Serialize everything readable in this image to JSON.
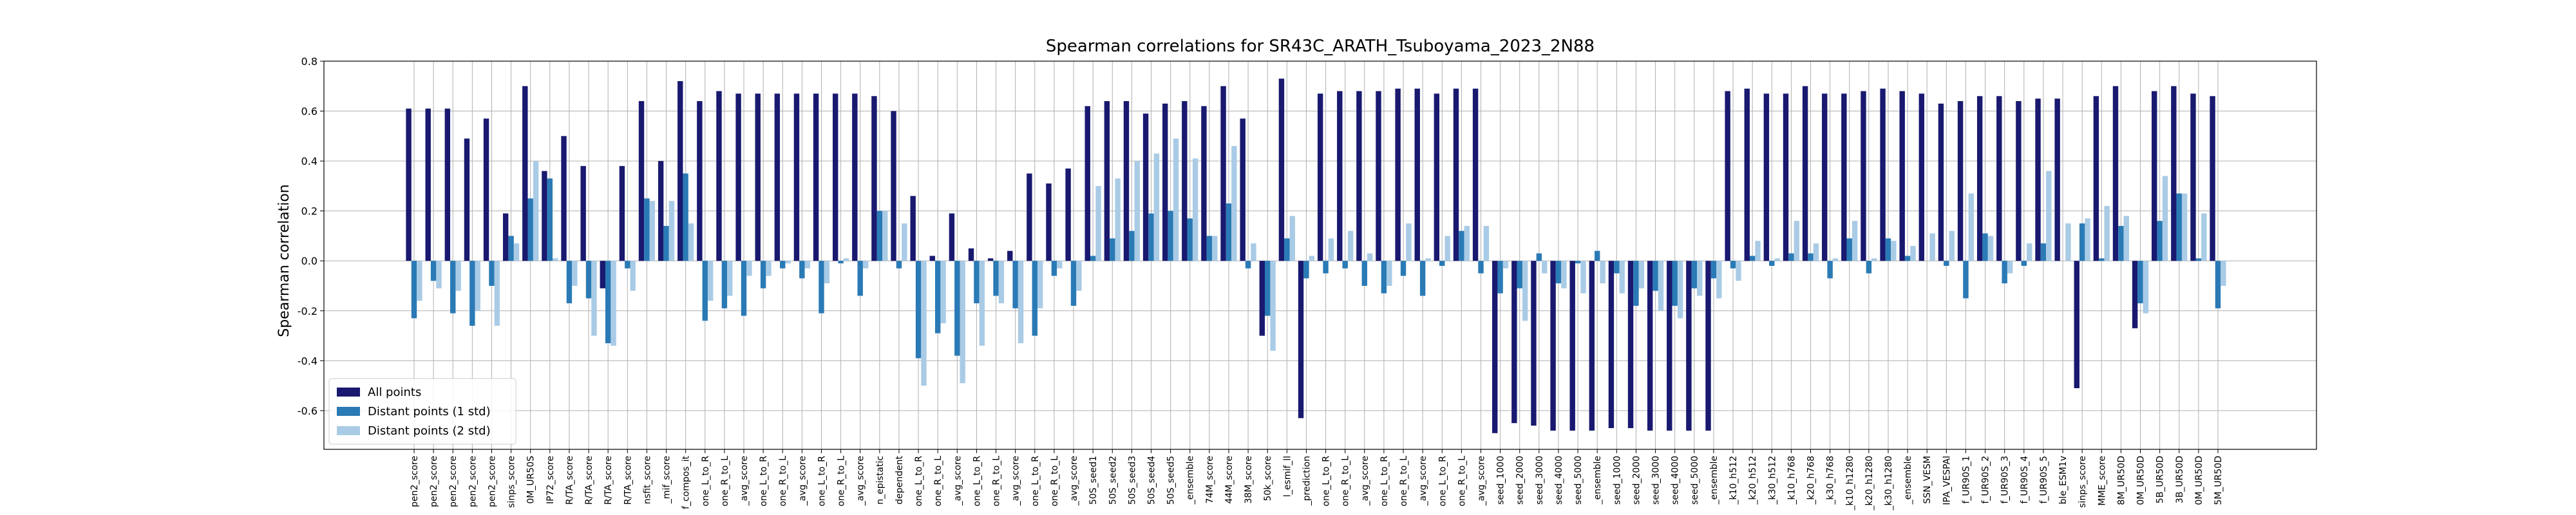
{
  "chart_data": {
    "type": "bar",
    "title": "Spearman correlations for SR43C_ARATH_Tsuboyama_2023_2N88",
    "y_label": "Spearman correlation",
    "categories": [
      "pen2_score",
      "pen2_score",
      "pen2_score",
      "pen2_score",
      "pen2_score",
      "sinps_score",
      "0M_UR50S",
      "IP72_score",
      "R/TA_score",
      "R/TA_score",
      "R/TA_score",
      "R/TA_score",
      "nsfit_score",
      "_mif_score",
      "f_compos_it",
      "one_L_to_R",
      "one_R_to_L",
      "_avg_score",
      "one_L_to_R",
      "one_R_to_L",
      "_avg_score",
      "one_L_to_R",
      "one_R_to_L",
      "_avg_score",
      "n_epistatic",
      "dependent",
      "one_L_to_R",
      "one_R_to_L",
      "_avg_score",
      "one_L_to_R",
      "one_R_to_L",
      "_avg_score",
      "one_L_to_R",
      "one_R_to_L",
      "_avg_score",
      "50S_seed1",
      "50S_seed2",
      "50S_seed3",
      "50S_seed4",
      "50S_seed5",
      "_ensemble",
      "74M_score",
      "44M_score",
      "38M_score",
      "50k_score",
      "l_esmif_ll",
      "_prediction",
      "one_L_to_R",
      "one_R_to_L",
      "_avg_score",
      "one_L_to_R",
      "one_R_to_L",
      "_avg_score",
      "one_L_to_R",
      "one_R_to_L",
      "_avg_score",
      "seed_1000",
      "seed_2000",
      "seed_3000",
      "seed_4000",
      "seed_5000",
      "_ensemble",
      "seed_1000",
      "seed_2000",
      "seed_3000",
      "seed_4000",
      "seed_5000",
      "_ensemble",
      "_k10_h512",
      "_k20_h512",
      "_k30_h512",
      "_k10_h768",
      "_k20_h768",
      "_k30_h768",
      "_k10_h1280",
      "_k20_h1280",
      "_k30_h1280",
      "_ensemble",
      "SSN_VESM",
      "IPA_VESPAl",
      "f_UR90S_1",
      "f_UR90S_2",
      "f_UR90S_3",
      "f_UR90S_4",
      "f_UR90S_5",
      "ble_ESM1v",
      "sinps_score",
      "MME_score",
      "8M_UR50D",
      "0M_UR50D",
      "5B_UR50D",
      "3B_UR50D",
      "0M_UR50D",
      "5M_UR50D"
    ],
    "series": [
      {
        "name": "All points",
        "color": "#191970",
        "values": [
          0.61,
          0.61,
          0.61,
          0.49,
          0.57,
          0.19,
          0.7,
          0.36,
          0.5,
          0.38,
          -0.11,
          0.38,
          0.64,
          0.4,
          0.72,
          0.64,
          0.68,
          0.67,
          0.67,
          0.67,
          0.67,
          0.67,
          0.67,
          0.67,
          0.66,
          0.6,
          0.26,
          0.02,
          0.19,
          0.05,
          0.01,
          0.04,
          0.35,
          0.31,
          0.37,
          0.62,
          0.64,
          0.64,
          0.59,
          0.63,
          0.64,
          0.62,
          0.7,
          0.57,
          -0.3,
          0.73,
          -0.63,
          0.67,
          0.68,
          0.68,
          0.68,
          0.69,
          0.69,
          0.67,
          0.69,
          0.69,
          -0.69,
          -0.65,
          -0.66,
          -0.68,
          -0.68,
          -0.68,
          -0.67,
          -0.67,
          -0.68,
          -0.68,
          -0.68,
          -0.68,
          0.68,
          0.69,
          0.67,
          0.67,
          0.7,
          0.67,
          0.67,
          0.68,
          0.69,
          0.68,
          0.67,
          0.63,
          0.64,
          0.66,
          0.66,
          0.64,
          0.65,
          0.65,
          -0.51,
          0.66,
          0.7,
          -0.27,
          0.68,
          0.7,
          0.67,
          0.66
        ]
      },
      {
        "name": "Distant points (1 std)",
        "color": "#2a7ab5",
        "values": [
          -0.23,
          -0.08,
          -0.21,
          -0.26,
          -0.1,
          0.1,
          0.25,
          0.33,
          -0.17,
          -0.15,
          -0.33,
          -0.03,
          0.25,
          0.14,
          0.35,
          -0.24,
          -0.19,
          -0.22,
          -0.11,
          -0.03,
          -0.07,
          -0.21,
          -0.01,
          -0.14,
          0.2,
          -0.03,
          -0.39,
          -0.29,
          -0.38,
          -0.17,
          -0.14,
          -0.19,
          -0.3,
          -0.06,
          -0.18,
          0.02,
          0.09,
          0.12,
          0.19,
          0.2,
          0.17,
          0.1,
          0.23,
          -0.03,
          -0.22,
          0.09,
          -0.07,
          -0.05,
          -0.03,
          -0.1,
          -0.13,
          -0.06,
          -0.14,
          -0.02,
          0.12,
          -0.05,
          -0.13,
          -0.11,
          0.03,
          -0.09,
          -0.01,
          0.04,
          -0.05,
          -0.18,
          -0.12,
          -0.18,
          -0.11,
          -0.07,
          -0.03,
          0.02,
          -0.02,
          0.03,
          0.03,
          -0.07,
          0.09,
          -0.05,
          0.09,
          0.02,
          0.0,
          -0.02,
          -0.15,
          0.11,
          -0.09,
          -0.02,
          0.07,
          0.0,
          0.15,
          0.01,
          0.14,
          -0.17,
          0.16,
          0.27,
          0.01,
          -0.19
        ]
      },
      {
        "name": "Distant points (2 std)",
        "color": "#a9cbe6",
        "values": [
          -0.16,
          -0.11,
          -0.12,
          -0.2,
          -0.26,
          0.07,
          0.4,
          0.01,
          -0.1,
          -0.3,
          -0.34,
          -0.12,
          0.24,
          0.24,
          0.15,
          -0.16,
          -0.14,
          -0.06,
          -0.06,
          -0.01,
          -0.03,
          -0.09,
          0.01,
          -0.03,
          0.2,
          0.15,
          -0.5,
          -0.25,
          -0.49,
          -0.34,
          -0.17,
          -0.33,
          -0.19,
          -0.03,
          -0.12,
          0.3,
          0.33,
          0.4,
          0.43,
          0.49,
          0.41,
          0.1,
          0.46,
          0.07,
          -0.36,
          0.18,
          0.02,
          0.09,
          0.12,
          0.03,
          -0.1,
          0.15,
          0.01,
          0.1,
          0.14,
          0.14,
          -0.03,
          -0.24,
          -0.05,
          -0.11,
          -0.13,
          -0.09,
          -0.13,
          -0.11,
          -0.2,
          -0.23,
          -0.14,
          -0.15,
          -0.08,
          0.08,
          0.01,
          0.16,
          0.07,
          0.01,
          0.16,
          0.01,
          0.08,
          0.06,
          0.11,
          0.12,
          0.27,
          0.1,
          -0.05,
          0.07,
          0.36,
          0.15,
          0.17,
          0.22,
          0.18,
          -0.21,
          0.34,
          0.27,
          0.19,
          -0.1
        ]
      }
    ],
    "ylim": [
      -0.755,
      0.8
    ],
    "yticks": [
      -0.6,
      -0.4,
      -0.2,
      0.0,
      0.2,
      0.4,
      0.6,
      0.8
    ],
    "grid": true,
    "legend": "lower left"
  }
}
